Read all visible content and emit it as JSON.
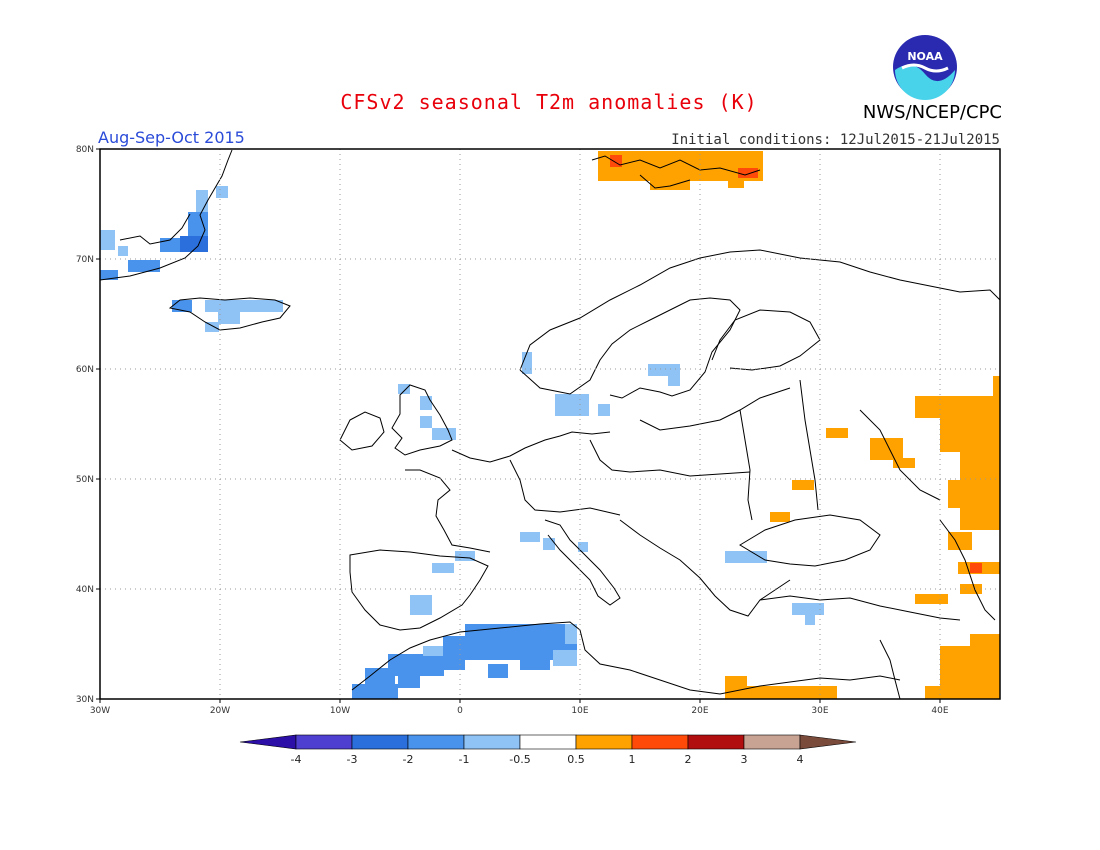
{
  "header": {
    "title": "CFSv2 seasonal T2m anomalies (K)",
    "agency": "NWS/NCEP/CPC",
    "season": "Aug-Sep-Oct 2015",
    "initial_conditions": "Initial conditions: 12Jul2015-21Jul2015",
    "logo_text": "NOAA"
  },
  "map": {
    "lon_range": [
      -30,
      45
    ],
    "lat_range": [
      30,
      80
    ],
    "x_ticks": [
      "30W",
      "20W",
      "10W",
      "0",
      "10E",
      "20E",
      "30E",
      "40E"
    ],
    "y_ticks": [
      "30N",
      "40N",
      "50N",
      "60N",
      "70N",
      "80N"
    ],
    "grid": true,
    "units": "K"
  },
  "colorbar": {
    "labels": [
      "-4",
      "-3",
      "-2",
      "-1",
      "-0.5",
      "0.5",
      "1",
      "2",
      "3",
      "4"
    ],
    "colors": [
      "#2b0fa6",
      "#4f3fd0",
      "#2a6fdb",
      "#4a93ec",
      "#8fc2f5",
      "#ffffff",
      "#ffa200",
      "#ff4a0a",
      "#b10f0f",
      "#c8a293",
      "#7a4a3a"
    ]
  },
  "anomaly_regions": [
    {
      "name": "Greenland east coast",
      "level": "-1 to -2",
      "color": "#4a93ec"
    },
    {
      "name": "Iceland",
      "level": "-0.5 to -1",
      "color": "#8fc2f5"
    },
    {
      "name": "Svalbard",
      "level": "0.5 to 1, locally 1 to 2",
      "color": "#ffa200"
    },
    {
      "name": "Western Russia",
      "level": "0.5 to 1",
      "color": "#ffa200"
    },
    {
      "name": "Caucasus",
      "level": "1 to 2",
      "color": "#ff4a0a"
    },
    {
      "name": "North Africa",
      "level": "-1 to -2",
      "color": "#4a93ec"
    },
    {
      "name": "Denmark / Southern Scandinavia",
      "level": "-0.5 to -1",
      "color": "#8fc2f5"
    },
    {
      "name": "Eastern Mediterranean / Middle East",
      "level": "0.5 to 1",
      "color": "#ffa200"
    }
  ]
}
